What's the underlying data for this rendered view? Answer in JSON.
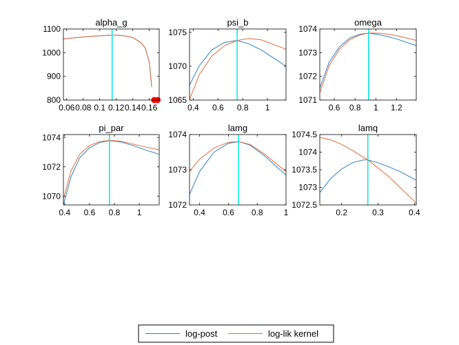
{
  "colors": {
    "log_post": "#2f7ec1",
    "log_lik": "#e4673b",
    "mode_line": "#00e5e5",
    "marker": "#ff0000",
    "axis": "#000000"
  },
  "legend": {
    "entries": [
      {
        "label": "log-post",
        "color_key": "log_post"
      },
      {
        "label": "log-lik kernel",
        "color_key": "log_lik"
      }
    ]
  },
  "chart_data": [
    {
      "type": "line",
      "title": "alpha_g",
      "xlim": [
        0.056,
        0.172
      ],
      "ylim": [
        800,
        1100
      ],
      "xticks": [
        0.06,
        0.08,
        0.1,
        0.12,
        0.14,
        0.16
      ],
      "xticklabels": [
        "0.06",
        "0.08",
        "0.1",
        "0.12",
        "0.14",
        "0.16"
      ],
      "yticks": [
        800,
        900,
        1000,
        1100
      ],
      "yticklabels": [
        "800",
        "900",
        "1000",
        "1100"
      ],
      "mode_x": 0.115,
      "series": [
        {
          "name": "log-post",
          "color_key": "log_post",
          "x": [
            0.056,
            0.07,
            0.09,
            0.11,
            0.12,
            0.13,
            0.14,
            0.15,
            0.155,
            0.16,
            0.163
          ],
          "y": [
            1058,
            1063,
            1069,
            1073,
            1074,
            1071,
            1064,
            1042,
            1020,
            960,
            855
          ]
        },
        {
          "name": "log-lik kernel",
          "color_key": "log_lik",
          "x": [
            0.056,
            0.07,
            0.09,
            0.11,
            0.12,
            0.13,
            0.14,
            0.15,
            0.155,
            0.16,
            0.163
          ],
          "y": [
            1058,
            1063,
            1069,
            1073,
            1074,
            1071,
            1064,
            1042,
            1020,
            960,
            855
          ]
        }
      ],
      "markers": [
        {
          "x": 0.166,
          "y": 800
        },
        {
          "x": 0.17,
          "y": 800
        }
      ]
    },
    {
      "type": "line",
      "title": "psi_b",
      "xlim": [
        0.37,
        1.15
      ],
      "ylim": [
        1065,
        1075.5
      ],
      "xticks": [
        0.4,
        0.6,
        0.8,
        1.0
      ],
      "xticklabels": [
        "0.4",
        "0.6",
        "0.8",
        "1"
      ],
      "yticks": [
        1065,
        1070,
        1075
      ],
      "yticklabels": [
        "1065",
        "1070",
        "1075"
      ],
      "mode_x": 0.755,
      "series": [
        {
          "name": "log-post",
          "color_key": "log_post",
          "x": [
            0.37,
            0.45,
            0.55,
            0.65,
            0.755,
            0.85,
            0.95,
            1.05,
            1.15
          ],
          "y": [
            1067.2,
            1070.1,
            1072.4,
            1073.5,
            1073.8,
            1073.3,
            1072.4,
            1071.2,
            1070.0
          ]
        },
        {
          "name": "log-lik kernel",
          "color_key": "log_lik",
          "x": [
            0.37,
            0.45,
            0.55,
            0.65,
            0.755,
            0.85,
            0.95,
            1.05,
            1.15
          ],
          "y": [
            1065.1,
            1068.8,
            1071.5,
            1073.0,
            1073.8,
            1074.1,
            1073.9,
            1073.2,
            1072.5
          ]
        }
      ]
    },
    {
      "type": "line",
      "title": "omega",
      "xlim": [
        0.46,
        1.39
      ],
      "ylim": [
        1071,
        1074
      ],
      "xticks": [
        0.6,
        0.8,
        1.0,
        1.2
      ],
      "xticklabels": [
        "0.6",
        "0.8",
        "1",
        "1.2"
      ],
      "yticks": [
        1071,
        1072,
        1073,
        1074
      ],
      "yticklabels": [
        "1071",
        "1072",
        "1073",
        "1074"
      ],
      "mode_x": 0.93,
      "series": [
        {
          "name": "log-post",
          "color_key": "log_post",
          "x": [
            0.46,
            0.55,
            0.65,
            0.75,
            0.85,
            0.93,
            1.05,
            1.2,
            1.39
          ],
          "y": [
            1071.5,
            1072.6,
            1073.25,
            1073.62,
            1073.78,
            1073.82,
            1073.75,
            1073.58,
            1073.3
          ]
        },
        {
          "name": "log-lik kernel",
          "color_key": "log_lik",
          "x": [
            0.46,
            0.55,
            0.65,
            0.75,
            0.85,
            0.93,
            1.05,
            1.2,
            1.39
          ],
          "y": [
            1071.3,
            1072.45,
            1073.15,
            1073.55,
            1073.75,
            1073.83,
            1073.82,
            1073.72,
            1073.52
          ]
        }
      ]
    },
    {
      "type": "line",
      "title": "pi_par",
      "xlim": [
        0.39,
        1.16
      ],
      "ylim": [
        1069.4,
        1074.2
      ],
      "xticks": [
        0.4,
        0.6,
        0.8,
        1.0
      ],
      "xticklabels": [
        "0.4",
        "0.6",
        "0.8",
        "1"
      ],
      "yticks": [
        1070,
        1072,
        1074
      ],
      "yticklabels": [
        "1070",
        "1072",
        "1074"
      ],
      "mode_x": 0.76,
      "series": [
        {
          "name": "log-post",
          "color_key": "log_post",
          "x": [
            0.39,
            0.45,
            0.52,
            0.6,
            0.68,
            0.76,
            0.85,
            0.95,
            1.05,
            1.16
          ],
          "y": [
            1069.4,
            1071.3,
            1072.6,
            1073.3,
            1073.65,
            1073.78,
            1073.7,
            1073.45,
            1073.15,
            1072.85
          ]
        },
        {
          "name": "log-lik kernel",
          "color_key": "log_lik",
          "x": [
            0.39,
            0.45,
            0.52,
            0.6,
            0.68,
            0.76,
            0.85,
            0.95,
            1.05,
            1.16
          ],
          "y": [
            1069.8,
            1071.7,
            1072.85,
            1073.45,
            1073.72,
            1073.8,
            1073.75,
            1073.55,
            1073.35,
            1073.15
          ]
        }
      ]
    },
    {
      "type": "line",
      "title": "lamg",
      "xlim": [
        0.33,
        1.0
      ],
      "ylim": [
        1072,
        1074
      ],
      "xticks": [
        0.4,
        0.6,
        0.8,
        1.0
      ],
      "xticklabels": [
        "0.4",
        "0.6",
        "0.8",
        "1"
      ],
      "yticks": [
        1072,
        1073,
        1074
      ],
      "yticklabels": [
        "1072",
        "1073",
        "1074"
      ],
      "mode_x": 0.67,
      "series": [
        {
          "name": "log-post",
          "color_key": "log_post",
          "x": [
            0.33,
            0.4,
            0.5,
            0.6,
            0.67,
            0.75,
            0.85,
            0.93,
            1.0
          ],
          "y": [
            1072.3,
            1072.95,
            1073.5,
            1073.75,
            1073.8,
            1073.7,
            1073.4,
            1073.1,
            1072.85
          ]
        },
        {
          "name": "log-lik kernel",
          "color_key": "log_lik",
          "x": [
            0.33,
            0.4,
            0.5,
            0.6,
            0.67,
            0.75,
            0.85,
            0.93,
            1.0
          ],
          "y": [
            1072.95,
            1073.3,
            1073.62,
            1073.78,
            1073.8,
            1073.72,
            1073.45,
            1073.18,
            1072.95
          ]
        }
      ]
    },
    {
      "type": "line",
      "title": "lamq",
      "xlim": [
        0.14,
        0.405
      ],
      "ylim": [
        1072.5,
        1074.5
      ],
      "xticks": [
        0.2,
        0.3,
        0.4
      ],
      "xticklabels": [
        "0.2",
        "0.3",
        "0.4"
      ],
      "yticks": [
        1072.5,
        1073,
        1073.5,
        1074,
        1074.5
      ],
      "yticklabels": [
        "1072.5",
        "1073",
        "1073.5",
        "1074",
        "1074.5"
      ],
      "mode_x": 0.272,
      "series": [
        {
          "name": "log-post",
          "color_key": "log_post",
          "x": [
            0.14,
            0.17,
            0.2,
            0.23,
            0.26,
            0.272,
            0.3,
            0.33,
            0.36,
            0.405
          ],
          "y": [
            1072.85,
            1073.25,
            1073.52,
            1073.7,
            1073.78,
            1073.78,
            1073.7,
            1073.58,
            1073.45,
            1073.2
          ]
        },
        {
          "name": "log-lik kernel",
          "color_key": "log_lik",
          "x": [
            0.14,
            0.17,
            0.2,
            0.23,
            0.26,
            0.272,
            0.3,
            0.33,
            0.36,
            0.405
          ],
          "y": [
            1074.42,
            1074.35,
            1074.22,
            1074.05,
            1073.85,
            1073.78,
            1073.55,
            1073.3,
            1073.0,
            1072.55
          ]
        }
      ]
    }
  ]
}
